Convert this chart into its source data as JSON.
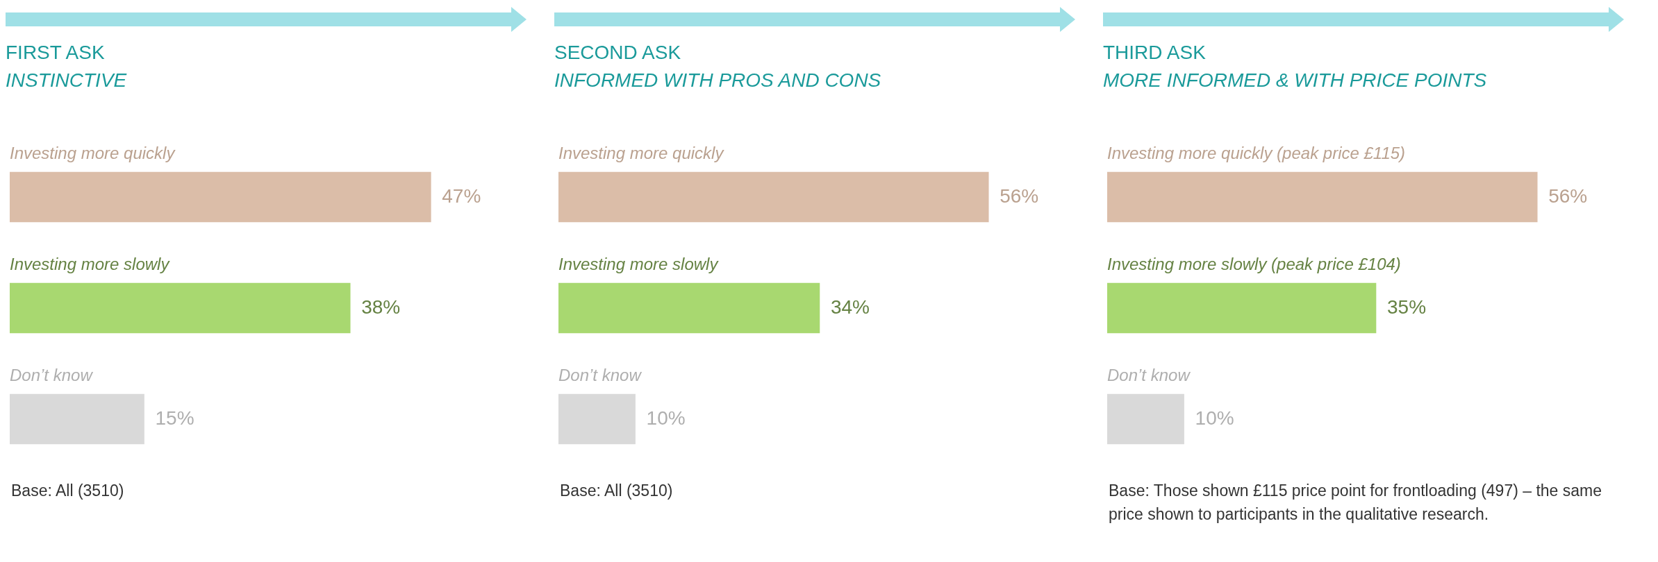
{
  "chart_data": [
    {
      "type": "bar",
      "orientation": "horizontal",
      "title": "FIRST ASK",
      "subtitle": "INSTINCTIVE",
      "categories": [
        "Investing more quickly",
        "Investing more slowly",
        "Don’t know"
      ],
      "values": [
        47,
        38,
        15
      ],
      "colors": [
        "#dbbda8",
        "#a8d870",
        "#d9d9d9"
      ],
      "value_labels": [
        "47%",
        "38%",
        "15%"
      ],
      "annotations": [
        "Base: All (3510)"
      ]
    },
    {
      "type": "bar",
      "orientation": "horizontal",
      "title": "SECOND ASK",
      "subtitle": "INFORMED WITH PROS AND CONS",
      "categories": [
        "Investing more quickly",
        "Investing more slowly",
        "Don’t know"
      ],
      "values": [
        56,
        34,
        10
      ],
      "colors": [
        "#dbbda8",
        "#a8d870",
        "#d9d9d9"
      ],
      "value_labels": [
        "56%",
        "34%",
        "10%"
      ],
      "annotations": [
        "Base: All (3510)"
      ]
    },
    {
      "type": "bar",
      "orientation": "horizontal",
      "title": "THIRD ASK",
      "subtitle": "MORE INFORMED & WITH PRICE POINTS",
      "categories": [
        "Investing more quickly (peak price £115)",
        "Investing more slowly (peak price £104)",
        "Don’t know"
      ],
      "values": [
        56,
        35,
        10
      ],
      "colors": [
        "#dbbda8",
        "#a8d870",
        "#d9d9d9"
      ],
      "value_labels": [
        "56%",
        "35%",
        "10%"
      ],
      "annotations": [
        "Base: Those shown £115 price point for frontloading (497) – the same price shown to participants in the qualitative research."
      ]
    }
  ]
}
